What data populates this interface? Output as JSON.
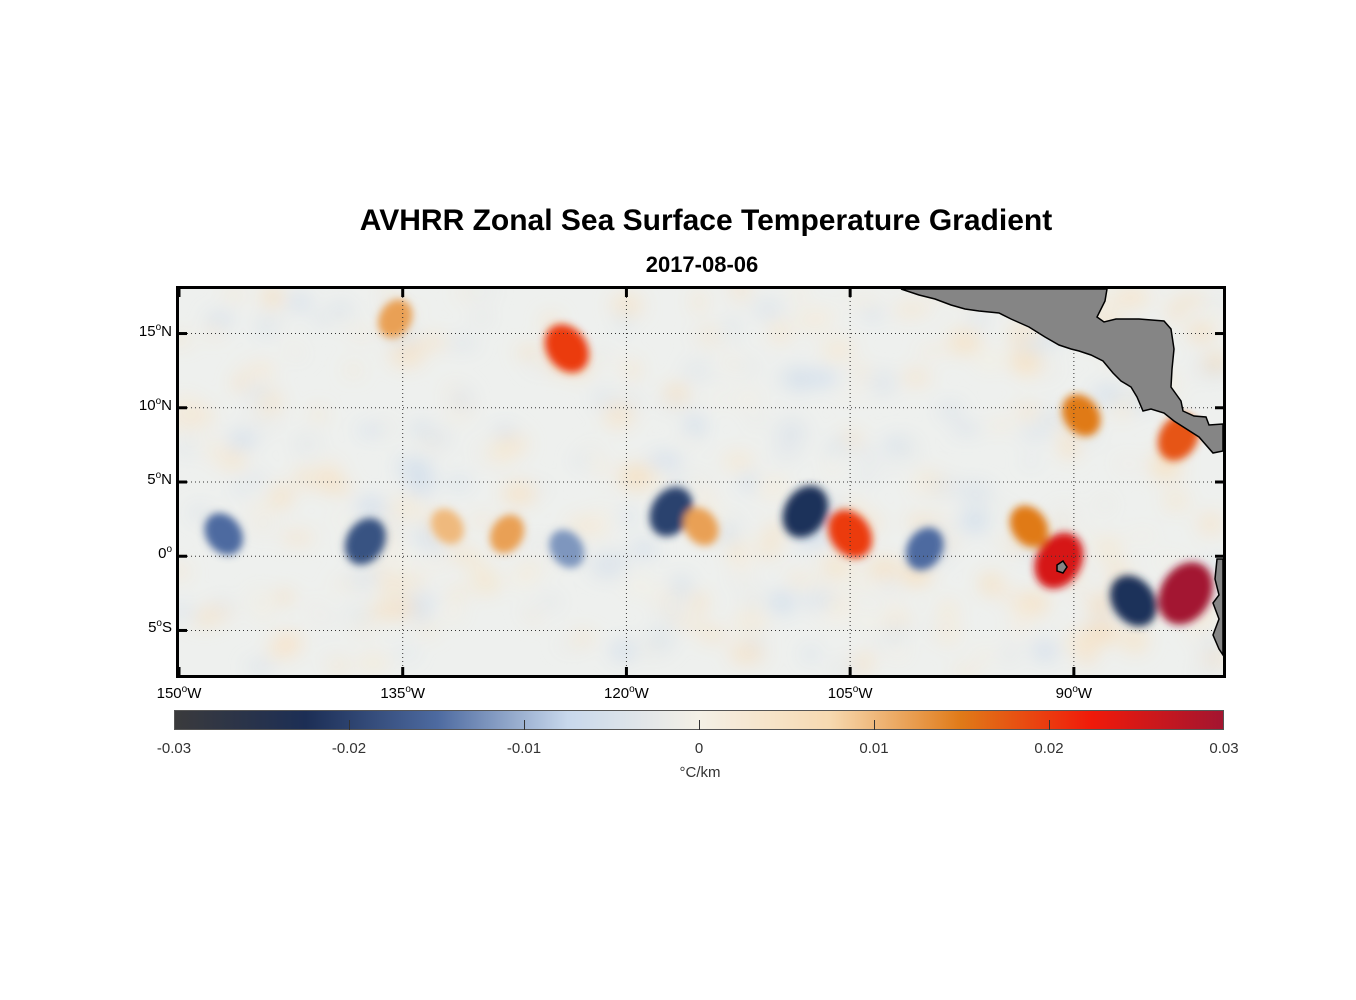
{
  "chart": {
    "title": "AVHRR Zonal Sea Surface Temperature Gradient",
    "subtitle": "2017-08-06"
  },
  "axes": {
    "y_ticks": [
      {
        "deg": "15",
        "hemi": "N"
      },
      {
        "deg": "10",
        "hemi": "N"
      },
      {
        "deg": "5",
        "hemi": "N"
      },
      {
        "deg": "0",
        "hemi": ""
      },
      {
        "deg": "5",
        "hemi": "S"
      }
    ],
    "x_ticks": [
      {
        "deg": "150",
        "hemi": "W"
      },
      {
        "deg": "135",
        "hemi": "W"
      },
      {
        "deg": "120",
        "hemi": "W"
      },
      {
        "deg": "105",
        "hemi": "W"
      },
      {
        "deg": "90",
        "hemi": "W"
      }
    ]
  },
  "colorbar": {
    "ticks": [
      "-0.03",
      "-0.02",
      "-0.01",
      "0",
      "0.01",
      "0.02",
      "0.03"
    ],
    "units": "°C/km",
    "colors": [
      "#3a3a3c",
      "#1c2e55",
      "#4d6aa0",
      "#c8d8ec",
      "#f4f0e6",
      "#f7d9b0",
      "#e07a18",
      "#f01a0a",
      "#a31530"
    ]
  },
  "chart_data": {
    "type": "heatmap",
    "variable": "zonal SST gradient",
    "lon_range": [
      -150,
      -80
    ],
    "lat_range": [
      -8,
      18
    ],
    "value_range": [
      -0.03,
      0.03
    ],
    "features": [
      {
        "lon": -147,
        "lat": 1.5,
        "value": -0.015
      },
      {
        "lon": -137.5,
        "lat": 1,
        "value": -0.018
      },
      {
        "lon": -132,
        "lat": 2,
        "value": 0.01
      },
      {
        "lon": -128,
        "lat": 1.5,
        "value": 0.012
      },
      {
        "lon": -124,
        "lat": 0.5,
        "value": -0.012
      },
      {
        "lon": -117,
        "lat": 3,
        "value": -0.02
      },
      {
        "lon": -115,
        "lat": 2,
        "value": 0.012
      },
      {
        "lon": -108,
        "lat": 3,
        "value": -0.022
      },
      {
        "lon": -105,
        "lat": 1.5,
        "value": 0.02
      },
      {
        "lon": -100,
        "lat": 0.5,
        "value": -0.015
      },
      {
        "lon": -93,
        "lat": 2,
        "value": 0.015
      },
      {
        "lon": -91,
        "lat": -0.3,
        "value": 0.025
      },
      {
        "lon": -86,
        "lat": -3,
        "value": -0.022
      },
      {
        "lon": -82.5,
        "lat": -2.5,
        "value": 0.03
      },
      {
        "lon": -124,
        "lat": 14,
        "value": 0.02
      },
      {
        "lon": -135.5,
        "lat": 16,
        "value": 0.012
      },
      {
        "lon": -89.5,
        "lat": 9.5,
        "value": 0.015
      },
      {
        "lon": -83,
        "lat": 8,
        "value": 0.018
      }
    ]
  }
}
